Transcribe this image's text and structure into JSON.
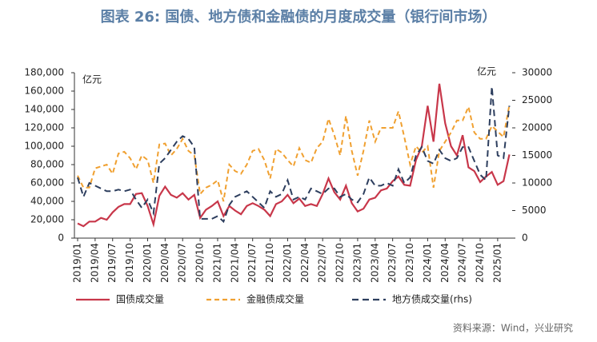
{
  "chart_data": {
    "type": "line",
    "title": "图表 26: 国债、地方债和金融债的月度成交量（银行间市场）",
    "unit_left": "亿元",
    "unit_right": "亿元",
    "source": "资料来源：Wind，兴业研究",
    "categories": [
      "2019/01",
      null,
      null,
      "2019/04",
      null,
      null,
      "2019/07",
      null,
      null,
      "2019/10",
      null,
      null,
      "2020/01",
      null,
      null,
      "2020/04",
      null,
      null,
      "2020/07",
      null,
      null,
      "2020/10",
      null,
      null,
      "2021/01",
      null,
      null,
      "2021/04",
      null,
      null,
      "2021/07",
      null,
      null,
      "2021/10",
      null,
      null,
      "2022/01",
      null,
      null,
      "2022/04",
      null,
      null,
      "2022/07",
      null,
      null,
      "2022/10",
      null,
      null,
      "2023/01",
      null,
      null,
      "2023/04",
      null,
      null,
      "2023/07",
      null,
      null,
      "2023/10",
      null,
      null,
      "2024/01",
      null,
      null,
      "2024/04",
      null,
      null,
      "2024/07",
      null,
      null,
      "2024/10",
      null,
      null,
      "2025/01",
      null,
      null
    ],
    "series": [
      {
        "name": "国债成交量",
        "color": "#c8374a",
        "values": [
          16000,
          13000,
          18000,
          18000,
          22000,
          20000,
          28000,
          34000,
          37000,
          37000,
          48000,
          49000,
          35000,
          15000,
          46000,
          56000,
          47000,
          44000,
          49000,
          42000,
          47000,
          22000,
          31000,
          35000,
          40000,
          24000,
          35000,
          30000,
          26000,
          35000,
          38000,
          35000,
          31000,
          24000,
          37000,
          40000,
          47000,
          38000,
          43000,
          35000,
          37000,
          35000,
          48000,
          65000,
          50000,
          42000,
          57000,
          38000,
          29000,
          32000,
          42000,
          44000,
          52000,
          54000,
          62000,
          67000,
          58000,
          57000,
          85000,
          100000,
          144000,
          105000,
          168000,
          125000,
          100000,
          90000,
          112000,
          77000,
          73000,
          61000,
          67000,
          72000,
          58000,
          62000,
          91000
        ]
      },
      {
        "name": "金融债成交量",
        "color": "#f0a030",
        "values": [
          68000,
          55000,
          55000,
          76000,
          78000,
          80000,
          70000,
          92000,
          94000,
          87000,
          75000,
          90000,
          85000,
          60000,
          102000,
          103000,
          90000,
          97000,
          108000,
          95000,
          90000,
          48000,
          55000,
          58000,
          63000,
          40000,
          80000,
          73000,
          70000,
          80000,
          95000,
          97000,
          85000,
          65000,
          97000,
          93000,
          85000,
          78000,
          98000,
          85000,
          82000,
          98000,
          105000,
          130000,
          112000,
          90000,
          133000,
          95000,
          68000,
          95000,
          128000,
          105000,
          120000,
          120000,
          120000,
          138000,
          110000,
          80000,
          100000,
          93000,
          100000,
          55000,
          95000,
          105000,
          115000,
          128000,
          128000,
          143000,
          115000,
          108000,
          108000,
          122000,
          116000,
          110000,
          145000
        ]
      },
      {
        "name": "地方债成交量(rhs)",
        "color": "#2d3e5e",
        "axis": "y2",
        "values": [
          11000,
          7500,
          10000,
          9500,
          9000,
          8500,
          8500,
          8800,
          8500,
          8800,
          7000,
          5500,
          7000,
          4500,
          13500,
          14500,
          16000,
          17500,
          18500,
          18000,
          16500,
          3500,
          3500,
          3500,
          4000,
          3000,
          6000,
          7500,
          8000,
          8500,
          7500,
          6500,
          5500,
          8500,
          7500,
          8000,
          10500,
          7000,
          7500,
          7000,
          9000,
          8500,
          8000,
          9000,
          9000,
          7500,
          8000,
          7000,
          6500,
          8000,
          11000,
          9500,
          9500,
          10000,
          9500,
          12500,
          10000,
          11000,
          15000,
          16500,
          14000,
          13500,
          16000,
          14500,
          14000,
          14500,
          16500,
          16500,
          14000,
          11500,
          10500,
          27500,
          15000,
          14500,
          24000
        ]
      }
    ],
    "ylim": [
      0,
      180000
    ],
    "yticks": [
      0,
      {
        "value": 20000,
        "label": "20,000"
      },
      {
        "value": 40000,
        "label": "40,000"
      },
      {
        "value": 60000,
        "label": "60,000"
      },
      {
        "value": 80000,
        "label": "80,000"
      },
      {
        "value": 100000,
        "label": "100,000"
      },
      {
        "value": 120000,
        "label": "120,000"
      },
      {
        "value": 140000,
        "label": "140,000"
      },
      {
        "value": 160000,
        "label": "160,000"
      },
      {
        "value": 180000,
        "label": "180,000"
      }
    ],
    "y2lim": [
      0,
      30000
    ],
    "y2ticks": [
      0,
      5000,
      10000,
      15000,
      20000,
      25000,
      30000
    ],
    "grid": false,
    "legend": "bottom"
  }
}
